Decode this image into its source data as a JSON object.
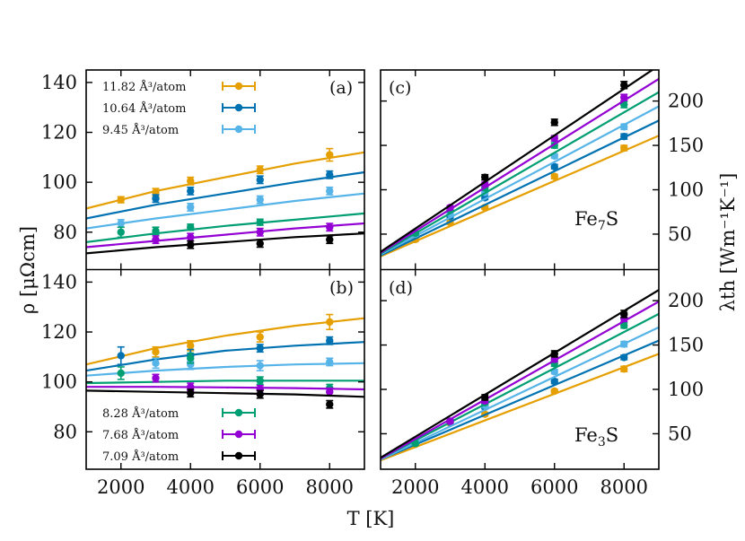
{
  "chart_data": {
    "type": "scatter",
    "xlabel": "T [K]",
    "xlim": [
      1000,
      9000
    ],
    "xticks": [
      2000,
      4000,
      6000,
      8000
    ],
    "left_ylabel": "ρ [μΩcm]",
    "right_ylabel": "λth [Wm⁻¹K⁻¹]",
    "legend": {
      "top": [
        "11.82 Å³/atom",
        "10.64 Å³/atom",
        "9.45 Å³/atom"
      ],
      "bottom": [
        "8.28 Å³/atom",
        "7.68 Å³/atom",
        "7.09 Å³/atom"
      ]
    },
    "colors": [
      "#E69F00",
      "#0072B2",
      "#56B4E9",
      "#009E73",
      "#9400D3",
      "#000000"
    ],
    "panels": [
      {
        "id": "a",
        "label": "(a)",
        "quantity": "resistivity",
        "ylim": [
          65,
          145
        ],
        "yticks": [
          80,
          100,
          120,
          140
        ],
        "series": [
          {
            "name": "11.82 Å³/atom",
            "x": [
              2000,
              3000,
              4000,
              6000,
              8000
            ],
            "y": [
              93,
              96,
              100.5,
              105,
              111
            ],
            "err": [
              1.2,
              1.5,
              1.5,
              1.5,
              2.5
            ],
            "fit": [
              [
                1000,
                89.5
              ],
              [
                3000,
                96.5
              ],
              [
                5000,
                102
              ],
              [
                7000,
                107.5
              ],
              [
                9000,
                112
              ]
            ]
          },
          {
            "name": "10.64 Å³/atom",
            "x": [
              3000,
              4000,
              6000,
              8000
            ],
            "y": [
              93.5,
              96.5,
              101,
              103
            ],
            "err": [
              1.5,
              1.5,
              1.5,
              1.5
            ],
            "fit": [
              [
                1000,
                85.5
              ],
              [
                3000,
                91
              ],
              [
                5000,
                95.5
              ],
              [
                7000,
                100
              ],
              [
                9000,
                104
              ]
            ]
          },
          {
            "name": "9.45 Å³/atom",
            "x": [
              2000,
              4000,
              6000,
              8000
            ],
            "y": [
              83.5,
              90,
              93,
              96.5
            ],
            "err": [
              1.5,
              1.5,
              1.5,
              1.5
            ],
            "fit": [
              [
                1000,
                81.5
              ],
              [
                3000,
                85.5
              ],
              [
                5000,
                89
              ],
              [
                7000,
                92.5
              ],
              [
                9000,
                95.5
              ]
            ]
          },
          {
            "name": "8.28 Å³/atom",
            "x": [
              2000,
              3000,
              4000,
              6000
            ],
            "y": [
              80,
              80.5,
              82,
              84
            ],
            "err": [
              2,
              1.5,
              1.2,
              1.2
            ],
            "fit": [
              [
                1000,
                76
              ],
              [
                3000,
                79.5
              ],
              [
                5000,
                82.5
              ],
              [
                7000,
                85
              ],
              [
                9000,
                87.5
              ]
            ]
          },
          {
            "name": "7.68 Å³/atom",
            "x": [
              3000,
              4000,
              6000,
              8000
            ],
            "y": [
              77,
              78,
              80,
              82
            ],
            "err": [
              1.5,
              1.5,
              1.5,
              1.5
            ],
            "fit": [
              [
                1000,
                74
              ],
              [
                3000,
                76.5
              ],
              [
                5000,
                79
              ],
              [
                7000,
                81.5
              ],
              [
                9000,
                83.5
              ]
            ]
          },
          {
            "name": "7.09 Å³/atom",
            "x": [
              4000,
              6000,
              8000
            ],
            "y": [
              75,
              75.5,
              77
            ],
            "err": [
              1.5,
              1.5,
              1.5
            ],
            "fit": [
              [
                1000,
                71.5
              ],
              [
                3000,
                74
              ],
              [
                5000,
                76
              ],
              [
                7000,
                78
              ],
              [
                9000,
                79.5
              ]
            ]
          }
        ]
      },
      {
        "id": "b",
        "label": "(b)",
        "quantity": "resistivity",
        "ylim": [
          65,
          145
        ],
        "yticks": [
          80,
          100,
          120,
          140
        ],
        "series": [
          {
            "name": "11.82 Å³/atom",
            "x": [
              3000,
              4000,
              6000,
              8000
            ],
            "y": [
              112,
              114.5,
              118,
              124
            ],
            "err": [
              2,
              2,
              2,
              3
            ],
            "fit": [
              [
                1000,
                107
              ],
              [
                3000,
                113.5
              ],
              [
                5000,
                118.5
              ],
              [
                7000,
                122.5
              ],
              [
                9000,
                125.5
              ]
            ]
          },
          {
            "name": "10.64 Å³/atom",
            "x": [
              2000,
              4000,
              6000,
              8000
            ],
            "y": [
              110.5,
              110.5,
              113.5,
              116.5
            ],
            "err": [
              3.5,
              2.5,
              1.5,
              1.5
            ],
            "fit": [
              [
                1000,
                104.5
              ],
              [
                3000,
                109
              ],
              [
                5000,
                112.5
              ],
              [
                7000,
                114.5
              ],
              [
                9000,
                116
              ]
            ]
          },
          {
            "name": "9.45 Å³/atom",
            "x": [
              3000,
              4000,
              6000,
              8000
            ],
            "y": [
              107.5,
              107,
              106.5,
              108
            ],
            "err": [
              2,
              2,
              2,
              1.5
            ],
            "fit": [
              [
                1000,
                102.5
              ],
              [
                3000,
                104.5
              ],
              [
                5000,
                106
              ],
              [
                7000,
                107
              ],
              [
                9000,
                107.5
              ]
            ]
          },
          {
            "name": "8.28 Å³/atom",
            "x": [
              2000,
              4000,
              6000,
              8000
            ],
            "y": [
              103.5,
              109.5,
              100.5,
              97.5
            ],
            "err": [
              2.5,
              2,
              1.5,
              1.5
            ],
            "fit": [
              [
                1000,
                99.5
              ],
              [
                3000,
                100
              ],
              [
                5000,
                100.5
              ],
              [
                7000,
                100.5
              ],
              [
                9000,
                100.5
              ]
            ]
          },
          {
            "name": "7.68 Å³/atom",
            "x": [
              3000,
              4000,
              6000,
              8000
            ],
            "y": [
              101.5,
              98,
              97,
              96
            ],
            "err": [
              1.5,
              1.5,
              1.5,
              1.5
            ],
            "fit": [
              [
                1000,
                98
              ],
              [
                3000,
                98
              ],
              [
                5000,
                97.8
              ],
              [
                7000,
                97.5
              ],
              [
                9000,
                97
              ]
            ]
          },
          {
            "name": "7.09 Å³/atom",
            "x": [
              4000,
              6000,
              8000
            ],
            "y": [
              95.5,
              95,
              91
            ],
            "err": [
              1.5,
              1.5,
              1.5
            ],
            "fit": [
              [
                1000,
                96.5
              ],
              [
                3000,
                96
              ],
              [
                5000,
                95.5
              ],
              [
                7000,
                95
              ],
              [
                9000,
                94
              ]
            ]
          }
        ]
      },
      {
        "id": "c",
        "label": "(c)",
        "compound": "Fe",
        "compound_sub": "7",
        "compound_suffix": "S",
        "quantity": "thermal conductivity",
        "ylim": [
          10,
          235
        ],
        "yticks": [
          50,
          100,
          150,
          200
        ],
        "series": [
          {
            "name": "11.82 Å³/atom",
            "x": [
              2000,
              3000,
              4000,
              6000,
              8000
            ],
            "y": [
              44,
              63,
              80,
              115,
              147
            ],
            "err": [
              2,
              2,
              2,
              2.5,
              3
            ],
            "fit": [
              [
                1000,
                25
              ],
              [
                9000,
                161
              ]
            ]
          },
          {
            "name": "10.64 Å³/atom",
            "x": [
              2000,
              3000,
              4000,
              6000,
              8000
            ],
            "y": [
              50,
              70,
              91,
              126,
              160
            ],
            "err": [
              2,
              2,
              2,
              2.5,
              3
            ],
            "fit": [
              [
                1000,
                26
              ],
              [
                9000,
                178
              ]
            ]
          },
          {
            "name": "9.45 Å³/atom",
            "x": [
              2000,
              3000,
              4000,
              6000,
              8000
            ],
            "y": [
              50,
              73,
              97,
              138,
              171
            ],
            "err": [
              2,
              2,
              2,
              2.5,
              3
            ],
            "fit": [
              [
                1000,
                27
              ],
              [
                9000,
                194
              ]
            ]
          },
          {
            "name": "8.28 Å³/atom",
            "x": [
              2000,
              3000,
              4000,
              6000,
              8000
            ],
            "y": [
              51,
              77,
              102,
              150,
              196
            ],
            "err": [
              2,
              2,
              2.5,
              3,
              3.5
            ],
            "fit": [
              [
                1000,
                28
              ],
              [
                9000,
                210
              ]
            ]
          },
          {
            "name": "7.68 Å³/atom",
            "x": [
              3000,
              4000,
              6000,
              8000
            ],
            "y": [
              80,
              106,
              158,
              204
            ],
            "err": [
              2,
              2.5,
              3,
              3.5
            ],
            "fit": [
              [
                1000,
                29
              ],
              [
                9000,
                225
              ]
            ]
          },
          {
            "name": "7.09 Å³/atom",
            "x": [
              4000,
              6000,
              8000
            ],
            "y": [
              114,
              176,
              218
            ],
            "err": [
              3,
              3.5,
              4
            ],
            "fit": [
              [
                1000,
                30
              ],
              [
                9000,
                240
              ]
            ]
          }
        ]
      },
      {
        "id": "d",
        "label": "(d)",
        "compound": "Fe",
        "compound_sub": "3",
        "compound_suffix": "S",
        "quantity": "thermal conductivity",
        "ylim": [
          10,
          235
        ],
        "yticks": [
          50,
          100,
          150,
          200
        ],
        "series": [
          {
            "name": "11.82 Å³/atom",
            "x": [
              2000,
              3000,
              4000,
              6000,
              8000
            ],
            "y": [
              38,
              62,
              72,
              98,
              123
            ],
            "err": [
              2,
              2,
              2,
              2,
              3
            ],
            "fit": [
              [
                1000,
                20
              ],
              [
                9000,
                140
              ]
            ]
          },
          {
            "name": "10.64 Å³/atom",
            "x": [
              2000,
              3000,
              4000,
              6000,
              8000
            ],
            "y": [
              40,
              63,
              80,
              109,
              136
            ],
            "err": [
              2,
              2,
              2,
              2.5,
              2.5
            ],
            "fit": [
              [
                1000,
                21
              ],
              [
                9000,
                155
              ]
            ]
          },
          {
            "name": "9.45 Å³/atom",
            "x": [
              2000,
              3000,
              4000,
              6000,
              8000
            ],
            "y": [
              40,
              64,
              82,
              120,
              151
            ],
            "err": [
              2,
              2,
              2,
              2.5,
              3
            ],
            "fit": [
              [
                1000,
                21
              ],
              [
                9000,
                170
              ]
            ]
          },
          {
            "name": "8.28 Å³/atom",
            "x": [
              2000,
              3000,
              4000,
              6000,
              8000
            ],
            "y": [
              39,
              64,
              85,
              129,
              172
            ],
            "err": [
              2,
              2,
              2,
              3,
              3
            ],
            "fit": [
              [
                1000,
                22
              ],
              [
                9000,
                185
              ]
            ]
          },
          {
            "name": "7.68 Å³/atom",
            "x": [
              3000,
              4000,
              6000,
              8000
            ],
            "y": [
              64,
              87,
              134,
              180
            ],
            "err": [
              2,
              2.5,
              3,
              3.5
            ],
            "fit": [
              [
                1000,
                22
              ],
              [
                9000,
                199
              ]
            ]
          },
          {
            "name": "7.09 Å³/atom",
            "x": [
              4000,
              6000,
              8000
            ],
            "y": [
              91,
              140,
              185
            ],
            "err": [
              3,
              3.5,
              4
            ],
            "fit": [
              [
                1000,
                23
              ],
              [
                9000,
                212
              ]
            ]
          }
        ]
      }
    ]
  }
}
